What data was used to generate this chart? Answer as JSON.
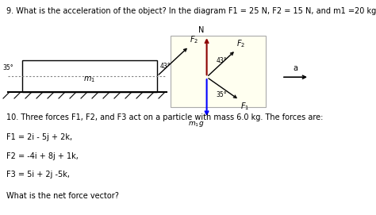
{
  "title_q9": "9. What is the acceleration of the object? In the diagram F1 = 25 N, F2 = 15 N, and m1 =20 kg.",
  "title_q10": "10. Three forces F1, F2, and F3 act on a particle with mass 6.0 kg. The forces are:",
  "f1_eq": "F1 = 2i - 5j + 2k,",
  "f2_eq": "F2 = -4i + 8j + 1k,",
  "f3_eq": "F3 = 5i + 2j -5k,",
  "question": "What is the net force vector?",
  "bg_color": "#ffffff",
  "diagram_bg": "#fffff0",
  "text_fontsize": 7.0,
  "small_fontsize": 5.5
}
